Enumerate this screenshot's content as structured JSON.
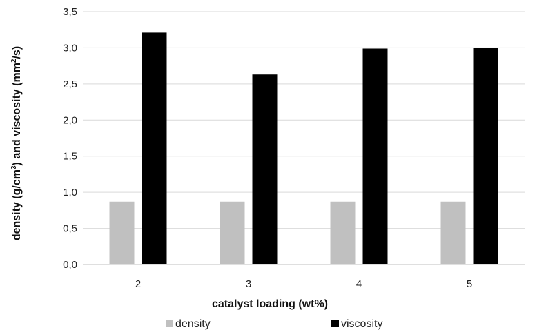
{
  "chart_data": {
    "type": "bar",
    "categories": [
      "2",
      "3",
      "4",
      "5"
    ],
    "series": [
      {
        "name": "density",
        "values": [
          0.87,
          0.87,
          0.87,
          0.87
        ],
        "color": "#c0c0c0"
      },
      {
        "name": "viscosity",
        "values": [
          3.21,
          2.63,
          2.99,
          3.0
        ],
        "color": "#000000"
      }
    ],
    "xlabel": "catalyst loading  (wt%)",
    "ylabel_parts": [
      "density (g/cm",
      "3",
      ") and viscosity (mm",
      "2",
      "/s)"
    ],
    "ylim": [
      0,
      3.5
    ],
    "yticks": [
      "0,0",
      "0,5",
      "1,0",
      "1,5",
      "2,0",
      "2,5",
      "3,0",
      "3,5"
    ],
    "grid": true,
    "legend_position": "bottom",
    "gridline_color": "#d9d9d9",
    "axis_color": "#bfbfbf"
  }
}
